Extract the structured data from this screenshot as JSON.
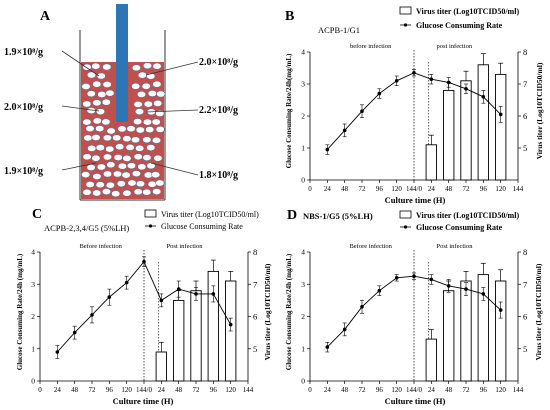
{
  "panel_a": {
    "letter": "A",
    "density_unit": "/g",
    "labels": [
      {
        "id": "left-1",
        "text": "1.9×10⁸/g"
      },
      {
        "id": "left-2",
        "text": "2.0×10⁸/g"
      },
      {
        "id": "left-3",
        "text": "1.9×10⁸/g"
      },
      {
        "id": "right-1",
        "text": "2.0×10⁸/g"
      },
      {
        "id": "right-2",
        "text": "2.2×10⁸/g"
      },
      {
        "id": "right-3",
        "text": "1.8×10⁸/g"
      }
    ],
    "colors": {
      "bed": "#c0504d",
      "tube": "#2e75b6",
      "bead": "#ffffff",
      "bead_edge": "#4a6fa5"
    }
  },
  "chart_data": [
    {
      "id": "B",
      "type": "bar+line",
      "letter": "B",
      "subtitle": "ACPB-1/G1",
      "legend": {
        "bar": "Virus titer (Log10TCID50/ml)",
        "line": "Glucose Consuming Rate"
      },
      "xlabel": "Culture time (H)",
      "ylabel_left": "Glucose Consuming Rate/24h(mg/mL)",
      "ylabel_right": "Virus titer (Log10TCID50/ml)",
      "x_ticks": [
        "0",
        "24",
        "48",
        "72",
        "96",
        "120",
        "144/0",
        "24",
        "48",
        "72",
        "96",
        "120",
        "144"
      ],
      "left_axis": {
        "min": 0,
        "max": 4,
        "ticks": [
          0,
          1,
          2,
          3,
          4
        ]
      },
      "right_axis": {
        "min": 4,
        "max": 8,
        "ticks": [
          5,
          6,
          7,
          8
        ]
      },
      "phase_labels": {
        "before": "before infection",
        "after": "post infection"
      },
      "glucose": {
        "before": {
          "x": [
            24,
            48,
            72,
            96,
            120,
            144
          ],
          "y": [
            0.95,
            1.55,
            2.15,
            2.7,
            3.1,
            3.35
          ],
          "err": [
            0.15,
            0.2,
            0.2,
            0.15,
            0.15,
            0.1
          ]
        },
        "after": {
          "x": [
            0,
            24,
            48,
            72,
            96,
            120
          ],
          "y": [
            3.35,
            3.15,
            3.05,
            2.85,
            2.6,
            2.05
          ],
          "err": [
            0.1,
            0.15,
            0.15,
            0.15,
            0.2,
            0.25
          ]
        }
      },
      "titer": {
        "x": [
          24,
          48,
          72,
          96,
          120
        ],
        "values": [
          5.1,
          6.8,
          7.1,
          7.6,
          7.3
        ],
        "err": [
          0.3,
          0.25,
          0.3,
          0.35,
          0.35
        ]
      }
    },
    {
      "id": "C",
      "type": "bar+line",
      "letter": "C",
      "subtitle": "ACPB-2,3,4/G5 (5%LH)",
      "legend": {
        "bar": "Virus titer (Log10TCID50/ml)",
        "line": "Glucose Consuming Rate"
      },
      "xlabel": "Culture time (H)",
      "ylabel_left": "Glucose Consuming Rate/24h (mg/mL)",
      "ylabel_right": "Virus titer (Log10TCID50/ml)",
      "x_ticks": [
        "0",
        "24",
        "48",
        "72",
        "96",
        "120",
        "144/0",
        "24",
        "48",
        "72",
        "96",
        "120",
        "144"
      ],
      "left_axis": {
        "min": 0,
        "max": 4,
        "ticks": [
          0,
          1,
          2,
          3,
          4
        ]
      },
      "right_axis": {
        "min": 4,
        "max": 8,
        "ticks": [
          5,
          6,
          7,
          8
        ]
      },
      "phase_labels": {
        "before": "Before infection",
        "after": "Post infection"
      },
      "glucose": {
        "before": {
          "x": [
            24,
            48,
            72,
            96,
            120,
            144
          ],
          "y": [
            0.9,
            1.5,
            2.05,
            2.6,
            3.05,
            3.7
          ],
          "err": [
            0.2,
            0.2,
            0.25,
            0.25,
            0.2,
            0.15
          ]
        },
        "after": {
          "x": [
            0,
            24,
            48,
            72,
            96,
            120
          ],
          "y": [
            3.7,
            2.5,
            2.85,
            2.7,
            2.7,
            1.75
          ],
          "err": [
            0.15,
            0.2,
            0.25,
            0.2,
            0.25,
            0.2
          ]
        }
      },
      "titer": {
        "x": [
          24,
          48,
          72,
          96,
          120
        ],
        "values": [
          4.9,
          6.5,
          6.8,
          7.4,
          7.1
        ],
        "err": [
          0.3,
          0.3,
          0.3,
          0.35,
          0.3
        ]
      }
    },
    {
      "id": "D",
      "type": "bar+line",
      "letter": "D",
      "subtitle": "NBS-1/G5 (5%LH)",
      "legend": {
        "bar": "Virus titer (Log10TCID50/ml)",
        "line": "Glucose Consuming Rate"
      },
      "xlabel": "Culture time (H)",
      "ylabel_left": "Glucose Consuming Rate/24h (mg/mL)",
      "ylabel_right": "Virus titer (Log10TCID50/ml)",
      "x_ticks": [
        "0",
        "24",
        "48",
        "72",
        "96",
        "120",
        "144/0",
        "24",
        "48",
        "72",
        "96",
        "120",
        "144"
      ],
      "left_axis": {
        "min": 0,
        "max": 4,
        "ticks": [
          0,
          1,
          2,
          3,
          4
        ]
      },
      "right_axis": {
        "min": 4,
        "max": 8,
        "ticks": [
          5,
          6,
          7,
          8
        ]
      },
      "phase_labels": {
        "before": "Before infection",
        "after": "Post infection"
      },
      "glucose": {
        "before": {
          "x": [
            24,
            48,
            72,
            96,
            120,
            144
          ],
          "y": [
            1.05,
            1.6,
            2.3,
            2.8,
            3.2,
            3.25
          ],
          "err": [
            0.15,
            0.2,
            0.2,
            0.15,
            0.1,
            0.1
          ]
        },
        "after": {
          "x": [
            0,
            24,
            48,
            72,
            96,
            120
          ],
          "y": [
            3.25,
            3.15,
            2.95,
            2.85,
            2.7,
            2.2
          ],
          "err": [
            0.1,
            0.15,
            0.2,
            0.2,
            0.2,
            0.25
          ]
        }
      },
      "titer": {
        "x": [
          24,
          48,
          72,
          96,
          120
        ],
        "values": [
          5.3,
          6.8,
          7.1,
          7.3,
          7.1
        ],
        "err": [
          0.3,
          0.3,
          0.3,
          0.35,
          0.35
        ]
      }
    }
  ]
}
